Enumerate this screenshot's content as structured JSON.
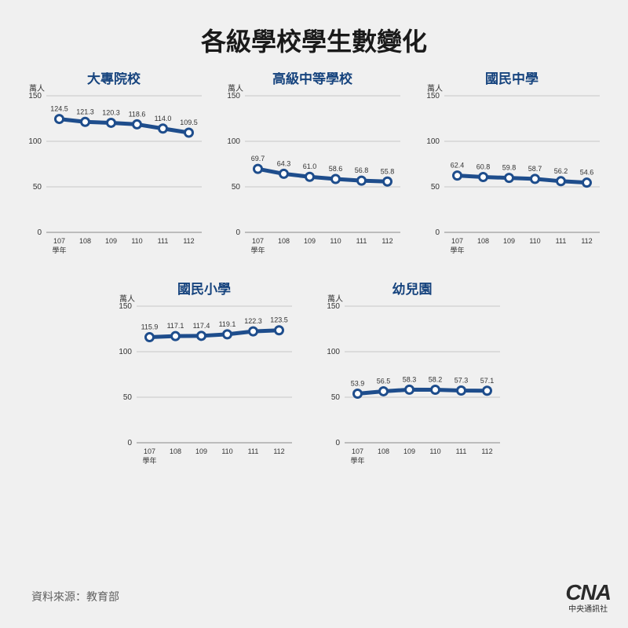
{
  "title": "各級學校學生數變化",
  "source_label": "資料來源：教育部",
  "logo": {
    "text": "CNA",
    "sub": "中央通訊社"
  },
  "chart_common": {
    "y_unit": "萬人",
    "x_sub": "學年",
    "ylim": [
      0,
      150
    ],
    "yticks": [
      0,
      50,
      100,
      150
    ],
    "categories": [
      "107",
      "108",
      "109",
      "110",
      "111",
      "112"
    ],
    "line_color": "#1e4d8c",
    "line_width": 5,
    "marker_radius": 5,
    "marker_stroke": "#1e4d8c",
    "marker_fill": "#ffffff",
    "marker_stroke_width": 3,
    "grid_color": "#888888",
    "axis_color": "#555555",
    "background": "#f0f0f0"
  },
  "charts": [
    {
      "title": "大專院校",
      "values": [
        124.5,
        121.3,
        120.3,
        118.6,
        114.0,
        109.5
      ]
    },
    {
      "title": "高級中等學校",
      "values": [
        69.7,
        64.3,
        61.0,
        58.6,
        56.8,
        55.8
      ]
    },
    {
      "title": "國民中學",
      "values": [
        62.4,
        60.8,
        59.8,
        58.7,
        56.2,
        54.6
      ]
    },
    {
      "title": "國民小學",
      "values": [
        115.9,
        117.1,
        117.4,
        119.1,
        122.3,
        123.5
      ]
    },
    {
      "title": "幼兒園",
      "values": [
        53.9,
        56.5,
        58.3,
        58.2,
        57.3,
        57.1
      ]
    }
  ]
}
